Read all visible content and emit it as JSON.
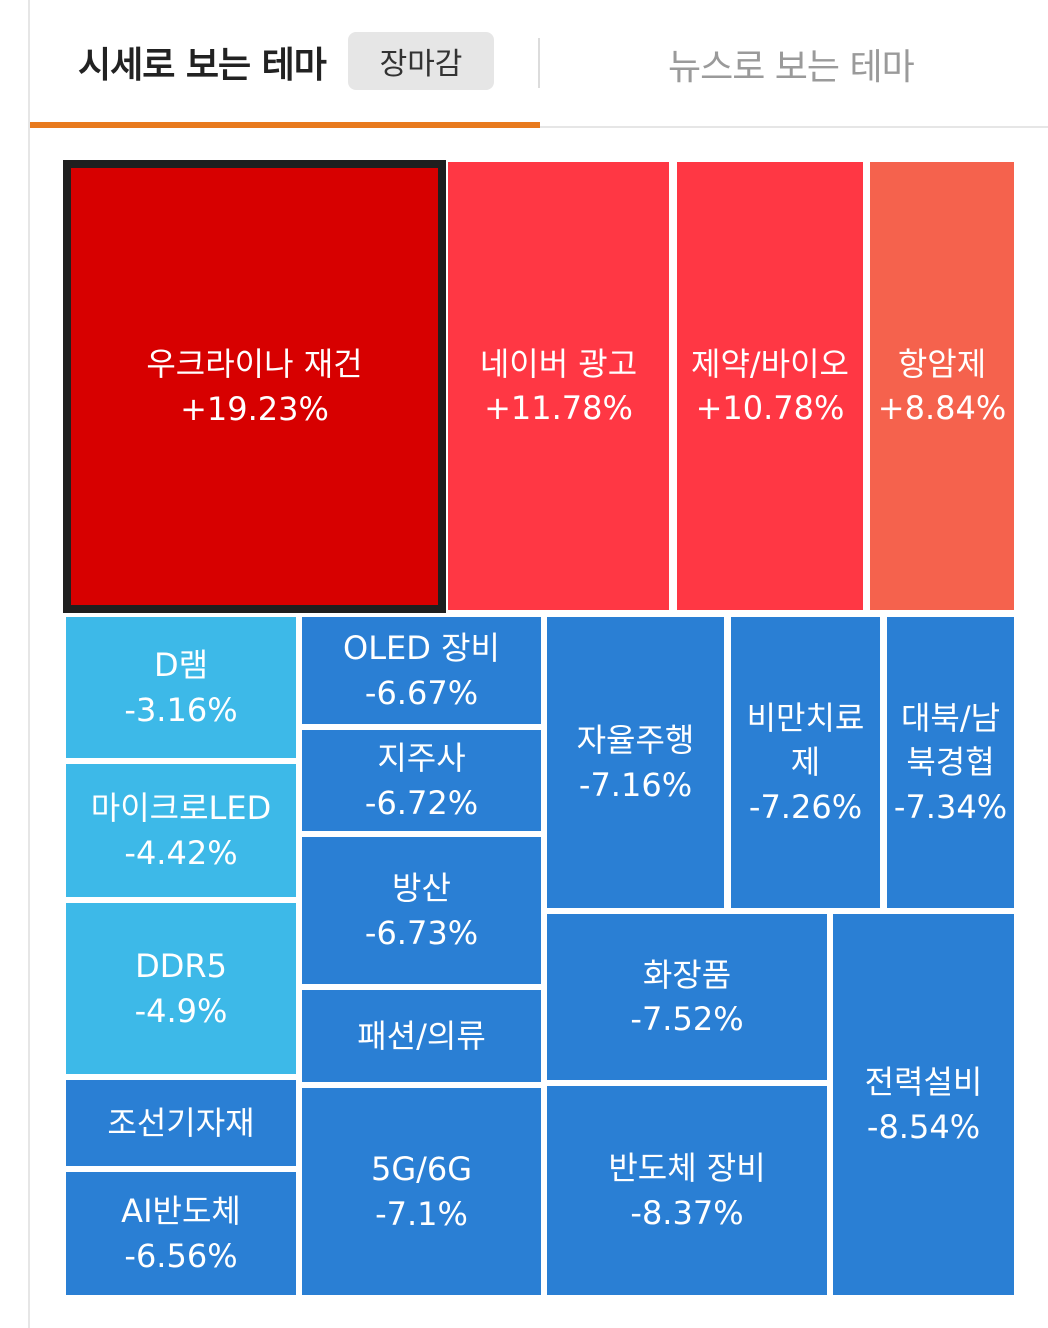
{
  "header": {
    "tab_price_theme": "시세로 보는 테마",
    "market_status": "장마감",
    "tab_news_theme": "뉴스로 보는 테마"
  },
  "colors": {
    "accent_orange": "#e87a1e",
    "up_strong": "#d70000",
    "up_mid": "#ff3744",
    "up_light": "#f5624d",
    "down_light": "#3db9e8",
    "down": "#2a7fd4"
  },
  "themes": [
    {
      "name": "우크라이나 재건",
      "change": "+19.23%"
    },
    {
      "name": "네이버 광고",
      "change": "+11.78%"
    },
    {
      "name": "제약/바이오",
      "change": "+10.78%"
    },
    {
      "name": "항암제",
      "change": "+8.84%"
    },
    {
      "name": "D램",
      "change": "-3.16%"
    },
    {
      "name": "마이크로LED",
      "change": "-4.42%"
    },
    {
      "name": "DDR5",
      "change": "-4.9%"
    },
    {
      "name": "조선기자재",
      "change": ""
    },
    {
      "name": "AI반도체",
      "change": "-6.56%"
    },
    {
      "name": "OLED 장비",
      "change": "-6.67%"
    },
    {
      "name": "지주사",
      "change": "-6.72%"
    },
    {
      "name": "방산",
      "change": "-6.73%"
    },
    {
      "name": "패션/의류",
      "change": ""
    },
    {
      "name": "5G/6G",
      "change": "-7.1%"
    },
    {
      "name": "자율주행",
      "change": "-7.16%"
    },
    {
      "name": "비만치료제",
      "change": "-7.26%"
    },
    {
      "name": "대북/남북경협",
      "change": "-7.34%"
    },
    {
      "name": "화장품",
      "change": "-7.52%"
    },
    {
      "name": "반도체 장비",
      "change": "-8.37%"
    },
    {
      "name": "전력설비",
      "change": "-8.54%"
    }
  ]
}
